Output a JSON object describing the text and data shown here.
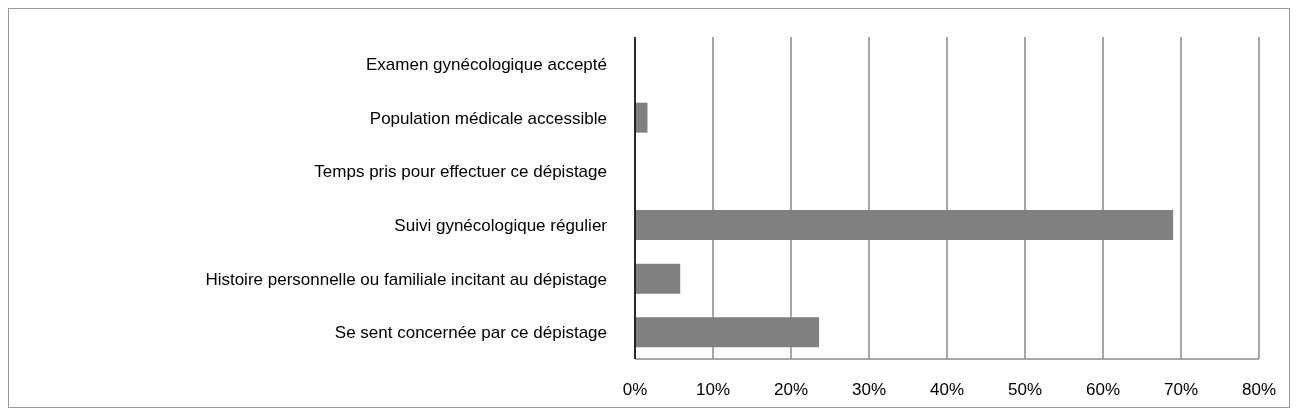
{
  "chart_data": {
    "type": "bar",
    "orientation": "horizontal",
    "categories": [
      "Examen gynécologique accepté",
      "Population médicale accessible",
      "Temps pris pour effectuer ce dépistage",
      "Suivi gynécologique régulier",
      "Histoire personnelle ou familiale incitant au dépistage",
      "Se sent concernée par ce dépistage"
    ],
    "values": [
      0,
      1.6,
      0,
      69,
      5.8,
      23.6
    ],
    "color": "#808080",
    "xlim": [
      0,
      80
    ],
    "xticks": [
      {
        "value": 0,
        "label": "0%"
      },
      {
        "value": 10,
        "label": "10%"
      },
      {
        "value": 20,
        "label": "20%"
      },
      {
        "value": 30,
        "label": "30%"
      },
      {
        "value": 40,
        "label": "40%"
      },
      {
        "value": 50,
        "label": "50%"
      },
      {
        "value": 60,
        "label": "60%"
      },
      {
        "value": 70,
        "label": "70%"
      },
      {
        "value": 80,
        "label": "80%"
      }
    ],
    "grid": "x",
    "legend": false
  }
}
